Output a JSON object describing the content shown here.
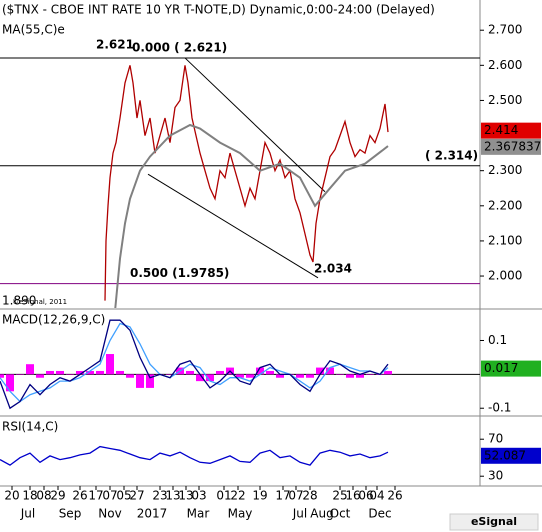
{
  "chart_data": [
    {
      "type": "line",
      "title": "($TNX - CBOE INT RATE 10 YR T-NOTE,D) Dynamic,0:00-24:00 (Delayed)",
      "xlim": [
        0,
        96
      ],
      "ylim": [
        1.909,
        2.786
      ],
      "yticks": [
        {
          "value": 2.7,
          "label": "2.700"
        },
        {
          "value": 2.6,
          "label": "2.600"
        },
        {
          "value": 2.5,
          "label": "2.500"
        },
        {
          "value": 2.3,
          "label": "2.300"
        },
        {
          "value": 2.2,
          "label": "2.200"
        },
        {
          "value": 2.1,
          "label": "2.100"
        },
        {
          "value": 2.0,
          "label": "2.000"
        }
      ],
      "series": [
        {
          "color": "#b00000",
          "last_color": "#e00000",
          "last_value": 2.414,
          "x": [
            21,
            21.2,
            21.6,
            22,
            22.6,
            23.2,
            24,
            25,
            26,
            26.6,
            27.4,
            28,
            29,
            30,
            31,
            32,
            33,
            34,
            35,
            36,
            37,
            37.6,
            38.4,
            39.2,
            40,
            41,
            42,
            43,
            44,
            45,
            46,
            47,
            48,
            49,
            50,
            51,
            52,
            53,
            54,
            55,
            56,
            57,
            58,
            59,
            60,
            61,
            62,
            62.6,
            63.2,
            64,
            65,
            66,
            67,
            68,
            69,
            70,
            71,
            72,
            73,
            74,
            75,
            76,
            77,
            77.6
          ],
          "values": [
            1.93,
            2.1,
            2.2,
            2.28,
            2.35,
            2.38,
            2.45,
            2.55,
            2.6,
            2.55,
            2.45,
            2.5,
            2.4,
            2.45,
            2.35,
            2.4,
            2.45,
            2.38,
            2.48,
            2.5,
            2.6,
            2.55,
            2.45,
            2.4,
            2.35,
            2.3,
            2.25,
            2.22,
            2.3,
            2.28,
            2.35,
            2.3,
            2.25,
            2.2,
            2.25,
            2.22,
            2.3,
            2.38,
            2.35,
            2.3,
            2.33,
            2.28,
            2.3,
            2.22,
            2.18,
            2.12,
            2.06,
            2.04,
            2.15,
            2.22,
            2.28,
            2.34,
            2.36,
            2.4,
            2.44,
            2.38,
            2.34,
            2.36,
            2.35,
            2.4,
            2.38,
            2.42,
            2.49,
            2.41
          ]
        },
        {
          "name": "MA(55,C)e",
          "color": "#808080",
          "last_color": "#909090",
          "last_value": 2.367837,
          "x": [
            23,
            24,
            25,
            26,
            28,
            30,
            34,
            38,
            40,
            44,
            48,
            52,
            56,
            60,
            63,
            66,
            69,
            73,
            77.6
          ],
          "values": [
            1.9,
            2.05,
            2.15,
            2.22,
            2.3,
            2.34,
            2.4,
            2.43,
            2.42,
            2.38,
            2.35,
            2.3,
            2.32,
            2.28,
            2.2,
            2.25,
            2.3,
            2.32,
            2.37
          ]
        }
      ],
      "hlines": [
        {
          "value": 2.621,
          "color": "#000000",
          "label": "0.000 ( 2.621)"
        },
        {
          "value": 2.314,
          "color": "#000000",
          "label": "( 2.314)"
        },
        {
          "value": 1.9785,
          "color": "#800080",
          "label": "0.500 (1.9785)"
        }
      ],
      "trendlines": [
        {
          "x": [
            37,
            65
          ],
          "y": [
            2.621,
            2.24
          ]
        },
        {
          "x": [
            29.6,
            63.6
          ],
          "y": [
            2.29,
            1.995
          ]
        }
      ],
      "annotations": [
        "2.621",
        "2.034",
        "1.890",
        "©eSignal, 2011"
      ]
    },
    {
      "type": "macd",
      "title": "MACD(12,26,9,C)",
      "xlim": [
        0,
        96
      ],
      "ylim": [
        -0.12,
        0.19
      ],
      "yticks": [
        0.1,
        -0.1
      ],
      "zero": 0,
      "x": [
        0,
        2,
        4,
        6,
        8,
        10,
        12,
        14,
        16,
        18,
        20,
        22,
        24,
        26,
        28,
        30,
        32,
        34,
        36,
        38,
        40,
        42,
        44,
        46,
        48,
        50,
        52,
        54,
        56,
        58,
        60,
        62,
        64,
        66,
        68,
        70,
        72,
        74,
        76,
        77.6
      ],
      "series": [
        {
          "kind": "bar",
          "color": "#ff00ff",
          "values": [
            -0.01,
            -0.05,
            0,
            0.03,
            -0.01,
            0.01,
            0.01,
            0,
            0.01,
            0.01,
            0.01,
            0.06,
            0.01,
            -0.01,
            -0.04,
            -0.04,
            0,
            0,
            0.02,
            0.01,
            -0.02,
            -0.02,
            0.01,
            0.02,
            -0.01,
            -0.01,
            0.02,
            0.01,
            -0.01,
            0,
            -0.01,
            -0.01,
            0.02,
            0.02,
            0,
            -0.01,
            -0.01,
            0,
            0,
            0.01
          ]
        },
        {
          "kind": "line",
          "color": "#40a0ff",
          "values": [
            -0.01,
            -0.05,
            -0.08,
            -0.06,
            -0.05,
            -0.04,
            -0.02,
            -0.02,
            -0.01,
            0.01,
            0.03,
            0.1,
            0.15,
            0.14,
            0.09,
            0.03,
            0.0,
            -0.01,
            0.01,
            0.03,
            0.02,
            -0.02,
            -0.03,
            -0.01,
            -0.01,
            -0.02,
            0.0,
            0.02,
            0.01,
            0.0,
            -0.02,
            -0.04,
            -0.02,
            0.02,
            0.03,
            0.02,
            0.01,
            0.01,
            0.0,
            0.02
          ]
        },
        {
          "kind": "line",
          "color": "#000080",
          "last_color": "#20b020",
          "last_value": 0.017,
          "values": [
            -0.02,
            -0.1,
            -0.08,
            -0.03,
            -0.06,
            -0.03,
            -0.01,
            -0.02,
            0.0,
            0.02,
            0.04,
            0.16,
            0.16,
            0.13,
            0.05,
            -0.01,
            0.0,
            -0.01,
            0.03,
            0.04,
            0.0,
            -0.04,
            -0.02,
            0.01,
            -0.02,
            -0.03,
            0.02,
            0.03,
            0.0,
            0.0,
            -0.03,
            -0.05,
            0.0,
            0.04,
            0.03,
            0.01,
            0.0,
            0.01,
            0.0,
            0.03
          ]
        }
      ]
    },
    {
      "type": "line",
      "title": "RSI(14,C)",
      "xlim": [
        0,
        96
      ],
      "ylim": [
        20.5,
        94
      ],
      "yticks": [
        70,
        30
      ],
      "x": [
        0,
        2,
        4,
        6,
        8,
        10,
        12,
        14,
        16,
        18,
        20,
        22,
        24,
        26,
        28,
        30,
        32,
        34,
        36,
        38,
        40,
        42,
        44,
        46,
        48,
        50,
        52,
        54,
        56,
        58,
        60,
        62,
        64,
        66,
        68,
        70,
        72,
        74,
        76,
        77.6
      ],
      "series": [
        {
          "color": "#0000cc",
          "last_color": "#0000cc",
          "last_value": 52.087,
          "values": [
            48,
            42,
            50,
            55,
            45,
            52,
            48,
            50,
            53,
            55,
            62,
            60,
            58,
            54,
            50,
            48,
            55,
            52,
            56,
            50,
            45,
            44,
            48,
            52,
            46,
            45,
            55,
            58,
            50,
            52,
            45,
            42,
            55,
            58,
            56,
            52,
            54,
            50,
            52,
            56
          ]
        }
      ],
      "xticks": [
        {
          "value": 2.4,
          "label": "20"
        },
        {
          "value": 6,
          "label": "18"
        },
        {
          "value": 8.8,
          "label": "08"
        },
        {
          "value": 11.6,
          "label": "29"
        },
        {
          "value": 16,
          "label": "26"
        },
        {
          "value": 19.2,
          "label": "17"
        },
        {
          "value": 22,
          "label": "07"
        },
        {
          "value": 24.8,
          "label": "05"
        },
        {
          "value": 27.4,
          "label": "27"
        },
        {
          "value": 32,
          "label": "23"
        },
        {
          "value": 34.6,
          "label": "13"
        },
        {
          "value": 37.2,
          "label": "13"
        },
        {
          "value": 39.8,
          "label": "03"
        },
        {
          "value": 44.8,
          "label": "01"
        },
        {
          "value": 47.6,
          "label": "22"
        },
        {
          "value": 52,
          "label": "19"
        },
        {
          "value": 56.6,
          "label": "17"
        },
        {
          "value": 59.2,
          "label": "07"
        },
        {
          "value": 62,
          "label": "28"
        },
        {
          "value": 68,
          "label": "25"
        },
        {
          "value": 70.6,
          "label": "16"
        },
        {
          "value": 73.2,
          "label": "06"
        },
        {
          "value": 75.4,
          "label": "04"
        },
        {
          "value": 79,
          "label": "26"
        }
      ],
      "month_ticks": [
        {
          "value": 5.6,
          "label": "Jul"
        },
        {
          "value": 14,
          "label": "Sep"
        },
        {
          "value": 22,
          "label": "Nov"
        },
        {
          "value": 30.4,
          "label": "2017"
        },
        {
          "value": 39.6,
          "label": "Mar"
        },
        {
          "value": 48,
          "label": "May"
        },
        {
          "value": 60,
          "label": "Jul"
        },
        {
          "value": 64.4,
          "label": "Aug"
        },
        {
          "value": 68,
          "label": "Oct"
        },
        {
          "value": 76,
          "label": "Dec"
        }
      ]
    }
  ],
  "footer": {
    "logo": "eSignal"
  }
}
